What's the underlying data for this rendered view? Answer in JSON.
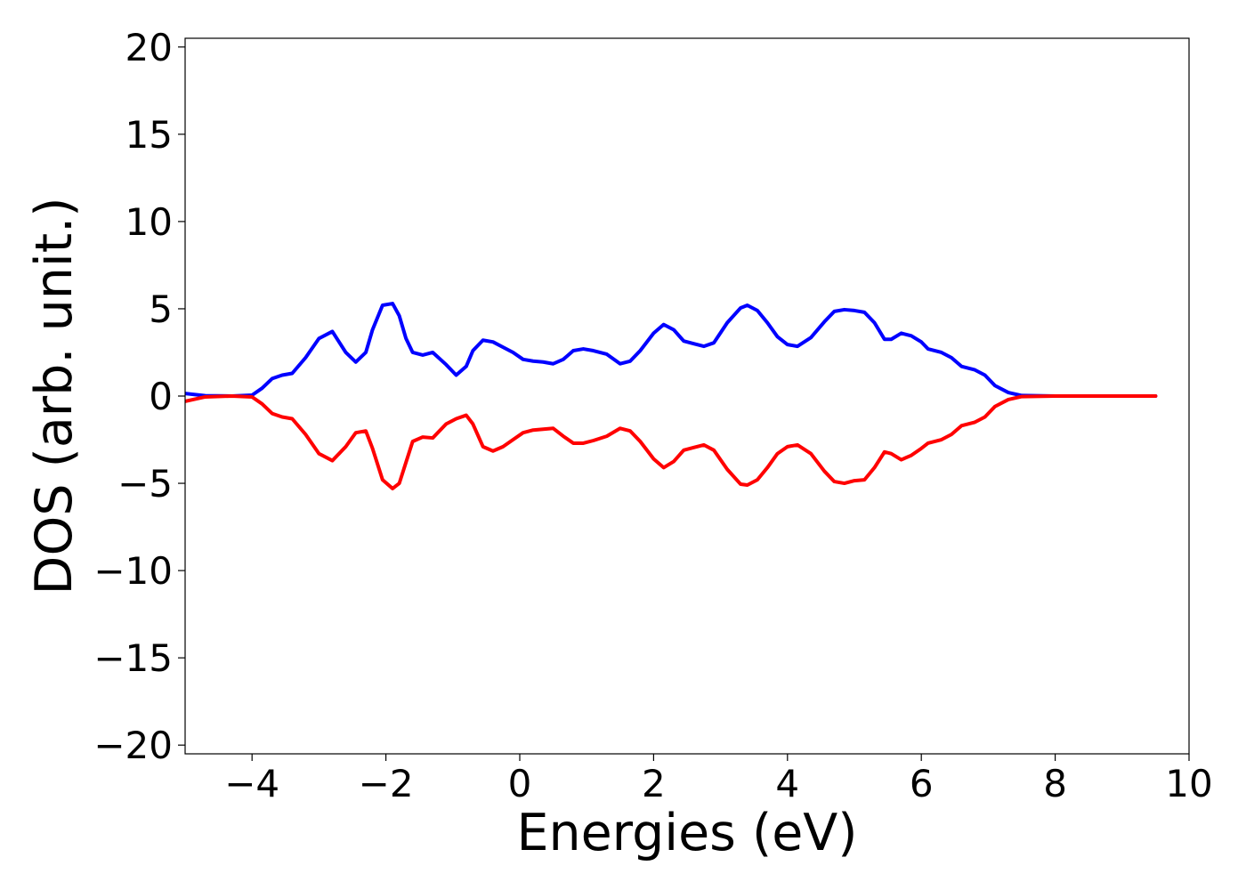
{
  "chart_data": {
    "type": "line",
    "title": "",
    "xlabel": "Energies (eV)",
    "ylabel": "DOS (arb. unit.)",
    "xlim": [
      -5,
      10
    ],
    "ylim": [
      -20.5,
      20.5
    ],
    "grid": false,
    "legend": "none",
    "x_ticks": [
      -4,
      -2,
      0,
      2,
      4,
      6,
      8,
      10
    ],
    "x_tick_labels": [
      "−4",
      "−2",
      "0",
      "2",
      "4",
      "6",
      "8",
      "10"
    ],
    "y_ticks": [
      20,
      15,
      10,
      5,
      0,
      -5,
      -10,
      -15,
      -20
    ],
    "y_tick_labels": [
      "20",
      "15",
      "10",
      "5",
      "0",
      "−5",
      "−10",
      "−15",
      "−20"
    ],
    "series": [
      {
        "color": "#0000ff",
        "x": [
          -5.0,
          -4.7,
          -4.3,
          -4.0,
          -3.85,
          -3.7,
          -3.55,
          -3.4,
          -3.2,
          -3.0,
          -2.8,
          -2.6,
          -2.45,
          -2.3,
          -2.2,
          -2.05,
          -1.9,
          -1.8,
          -1.7,
          -1.6,
          -1.45,
          -1.3,
          -1.1,
          -0.95,
          -0.8,
          -0.7,
          -0.55,
          -0.4,
          -0.25,
          -0.1,
          0.05,
          0.2,
          0.35,
          0.5,
          0.65,
          0.8,
          0.95,
          1.1,
          1.3,
          1.5,
          1.65,
          1.8,
          2.0,
          2.15,
          2.3,
          2.45,
          2.6,
          2.75,
          2.9,
          3.1,
          3.3,
          3.4,
          3.55,
          3.7,
          3.85,
          4.0,
          4.15,
          4.35,
          4.55,
          4.7,
          4.85,
          5.0,
          5.15,
          5.3,
          5.45,
          5.55,
          5.7,
          5.85,
          6.0,
          6.1,
          6.3,
          6.45,
          6.6,
          6.8,
          6.95,
          7.1,
          7.3,
          7.5,
          8.0,
          9.0,
          9.5
        ],
        "values": [
          0.15,
          0.02,
          0.0,
          0.05,
          0.45,
          1.0,
          1.2,
          1.3,
          2.2,
          3.3,
          3.7,
          2.5,
          1.95,
          2.5,
          3.8,
          5.2,
          5.3,
          4.6,
          3.3,
          2.5,
          2.35,
          2.5,
          1.8,
          1.2,
          1.7,
          2.6,
          3.2,
          3.1,
          2.8,
          2.5,
          2.1,
          2.0,
          1.95,
          1.85,
          2.1,
          2.6,
          2.7,
          2.6,
          2.4,
          1.85,
          2.0,
          2.6,
          3.6,
          4.1,
          3.8,
          3.15,
          3.0,
          2.85,
          3.05,
          4.2,
          5.05,
          5.2,
          4.9,
          4.2,
          3.4,
          2.95,
          2.85,
          3.35,
          4.25,
          4.85,
          4.95,
          4.9,
          4.8,
          4.2,
          3.25,
          3.25,
          3.6,
          3.45,
          3.1,
          2.7,
          2.5,
          2.2,
          1.7,
          1.5,
          1.2,
          0.6,
          0.2,
          0.03,
          0.0,
          0.0,
          0.0
        ]
      },
      {
        "color": "#ff0000",
        "x": [
          -5.0,
          -4.7,
          -4.3,
          -4.0,
          -3.85,
          -3.7,
          -3.55,
          -3.4,
          -3.2,
          -3.0,
          -2.8,
          -2.6,
          -2.45,
          -2.3,
          -2.2,
          -2.05,
          -1.9,
          -1.8,
          -1.7,
          -1.6,
          -1.45,
          -1.3,
          -1.1,
          -0.95,
          -0.8,
          -0.7,
          -0.55,
          -0.4,
          -0.25,
          -0.1,
          0.05,
          0.2,
          0.35,
          0.5,
          0.65,
          0.8,
          0.95,
          1.1,
          1.3,
          1.5,
          1.65,
          1.8,
          2.0,
          2.15,
          2.3,
          2.45,
          2.6,
          2.75,
          2.9,
          3.1,
          3.3,
          3.4,
          3.55,
          3.7,
          3.85,
          4.0,
          4.15,
          4.35,
          4.55,
          4.7,
          4.85,
          5.0,
          5.15,
          5.3,
          5.45,
          5.55,
          5.7,
          5.85,
          6.0,
          6.1,
          6.3,
          6.45,
          6.6,
          6.8,
          6.95,
          7.1,
          7.3,
          7.5,
          8.0,
          9.0,
          9.5
        ],
        "values": [
          -0.3,
          -0.05,
          0.0,
          -0.05,
          -0.45,
          -1.0,
          -1.2,
          -1.3,
          -2.2,
          -3.3,
          -3.7,
          -2.9,
          -2.1,
          -2.0,
          -3.0,
          -4.8,
          -5.3,
          -5.0,
          -3.8,
          -2.6,
          -2.35,
          -2.4,
          -1.6,
          -1.3,
          -1.1,
          -1.6,
          -2.9,
          -3.15,
          -2.9,
          -2.5,
          -2.1,
          -1.95,
          -1.9,
          -1.85,
          -2.3,
          -2.7,
          -2.7,
          -2.55,
          -2.3,
          -1.85,
          -2.0,
          -2.6,
          -3.6,
          -4.1,
          -3.75,
          -3.1,
          -2.95,
          -2.8,
          -3.1,
          -4.2,
          -5.05,
          -5.1,
          -4.8,
          -4.1,
          -3.3,
          -2.9,
          -2.8,
          -3.3,
          -4.3,
          -4.9,
          -5.0,
          -4.85,
          -4.8,
          -4.1,
          -3.2,
          -3.3,
          -3.65,
          -3.4,
          -3.0,
          -2.7,
          -2.5,
          -2.2,
          -1.7,
          -1.5,
          -1.2,
          -0.6,
          -0.2,
          -0.03,
          0.0,
          0.0,
          0.0
        ]
      }
    ]
  }
}
